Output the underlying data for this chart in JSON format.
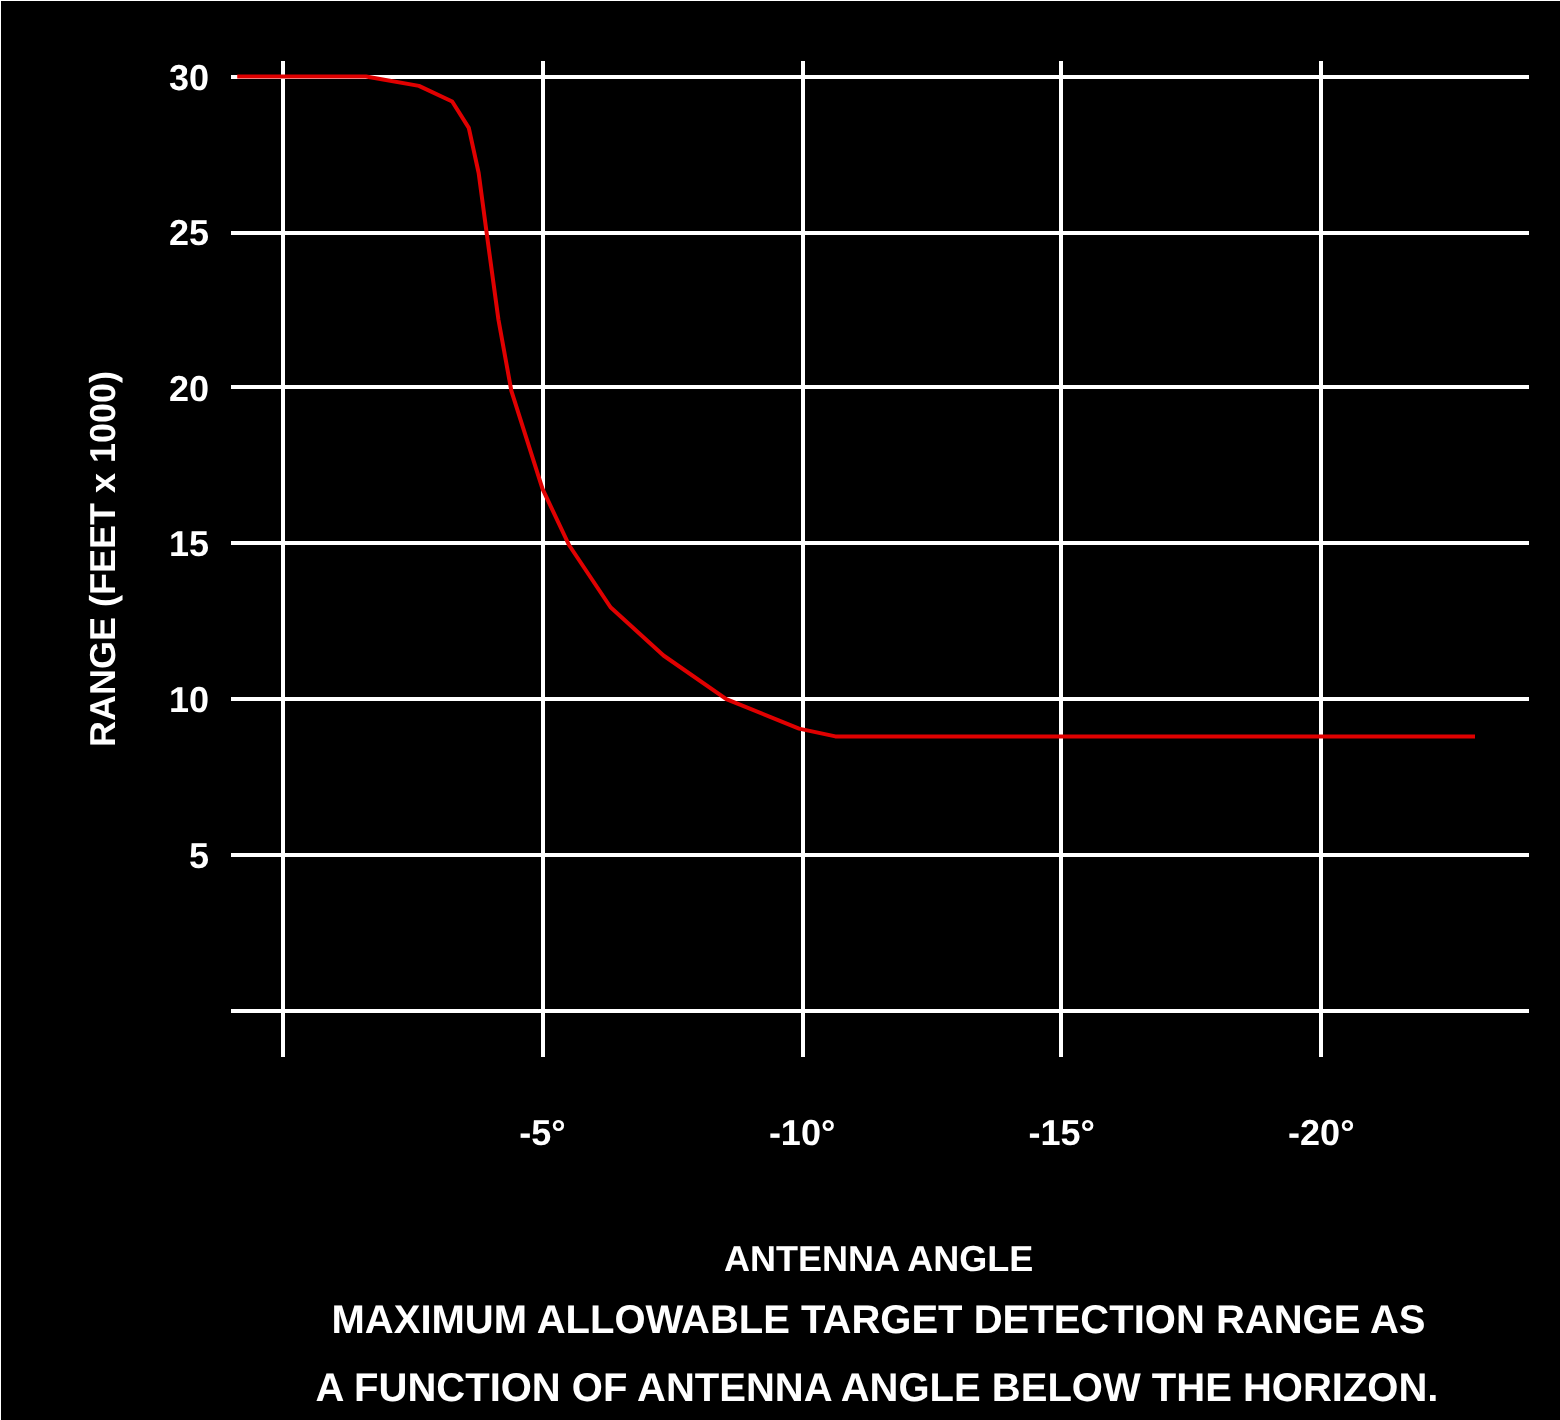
{
  "chart_data": {
    "type": "line",
    "title": "MAXIMUM ALLOWABLE TARGET DETECTION RANGE AS\nA FUNCTION OF ANTENNA ANGLE BELOW THE HORIZON.",
    "xlabel": "ANTENNA ANGLE",
    "ylabel": "RANGE (FEET x 1000)",
    "xlim": [
      1,
      -24
    ],
    "ylim": [
      -1.5,
      30.5
    ],
    "xticks": [
      {
        "value": 0,
        "label": null
      },
      {
        "value": -5,
        "label": "-5°"
      },
      {
        "value": -10,
        "label": "-10°"
      },
      {
        "value": -15,
        "label": "-15°"
      },
      {
        "value": -20,
        "label": "-20°"
      }
    ],
    "yticks": [
      {
        "value": 0,
        "label": null
      },
      5,
      10,
      15,
      20,
      25,
      30
    ],
    "grid": true,
    "marker": "none",
    "line_style": "solid",
    "x": [
      0.88,
      -1.6,
      -2.62,
      -3.26,
      -3.58,
      -3.77,
      -3.93,
      -4.15,
      -4.4,
      -5.0,
      -5.51,
      -6.31,
      -7.33,
      -8.54,
      -9.94,
      -10.64,
      -22.96
    ],
    "series": [
      {
        "color": "#e00000",
        "values": [
          30,
          30,
          29.7,
          29.2,
          28.35,
          26.9,
          24.9,
          22.2,
          19.9,
          16.75,
          14.95,
          12.95,
          11.4,
          10.0,
          9.05,
          8.8,
          8.8
        ]
      }
    ]
  }
}
